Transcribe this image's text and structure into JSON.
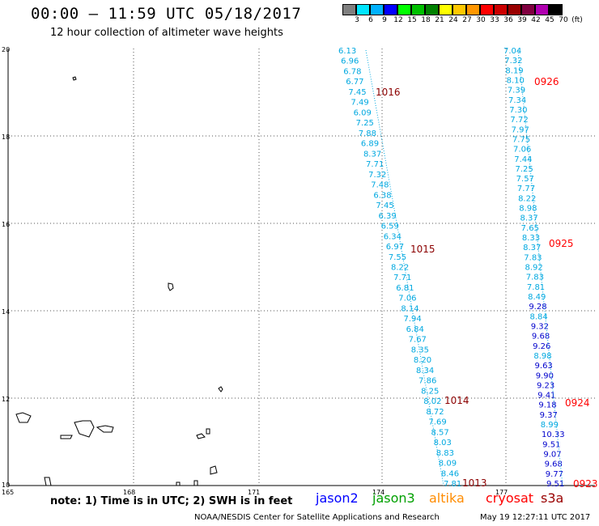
{
  "header": {
    "title": "00:00 – 11:59 UTC 05/18/2017",
    "subtitle": "12 hour collection of altimeter wave heights"
  },
  "colorbar": {
    "labels": [
      "3",
      "6",
      "9",
      "12",
      "15",
      "18",
      "21",
      "24",
      "27",
      "30",
      "33",
      "36",
      "39",
      "42",
      "45",
      "70",
      "(ft)"
    ],
    "colors": [
      "#7f7f7f",
      "#00e5ff",
      "#00b2ff",
      "#0000ff",
      "#00ff00",
      "#00c000",
      "#008000",
      "#ffff00",
      "#ffc800",
      "#ff9600",
      "#ff0000",
      "#cc0000",
      "#990000",
      "#800040",
      "#b000b0",
      "#000000"
    ]
  },
  "note": "note: 1) Time is in UTC; 2) SWH is in feet",
  "satellites": [
    {
      "name": "jason2",
      "color": "#0000ff"
    },
    {
      "name": "jason3",
      "color": "#00a000"
    },
    {
      "name": "altika",
      "color": "#ff8c00"
    },
    {
      "name": "cryosat",
      "color": "#ff0000"
    },
    {
      "name": "s3a",
      "color": "#990000"
    }
  ],
  "footer": {
    "credit": "NOAA/NESDIS Center for Satellite Applications and Research",
    "generated": "May 19 12:27:11 UTC 2017"
  },
  "chart_data": {
    "type": "scatter",
    "xlim": [
      165,
      179
    ],
    "ylim": [
      10,
      20
    ],
    "x_ticks": [
      "165",
      "168",
      "171",
      "174",
      "177"
    ],
    "y_ticks": [
      "20",
      "18",
      "16",
      "14",
      "12",
      "10"
    ],
    "grid": true,
    "tracks": [
      {
        "satellite": "s3a",
        "values": [
          "6.13",
          "6.96",
          "6.78",
          "6.77",
          "7.45",
          "7.49",
          "6.09",
          "7.25",
          "7.88",
          "6.89",
          "8.37",
          "7.71",
          "7.32",
          "7.48",
          "6.38",
          "7.45",
          "6.39",
          "6.59",
          "6.34",
          "6.97",
          "7.55",
          "8.22",
          "7.71",
          "6.81",
          "7.06",
          "8.14",
          "7.94",
          "6.84",
          "7.67",
          "8.35",
          "8.20",
          "8.34",
          "7.86",
          "8.25",
          "8.02",
          "8.72",
          "7.69",
          "8.57",
          "8.03",
          "8.83",
          "8.09",
          "8.46",
          "7.81"
        ],
        "colors": [
          "#00b2ff"
        ],
        "times": [
          {
            "label": "1016",
            "after_index": 4
          },
          {
            "label": "1015",
            "after_index": 19
          },
          {
            "label": "1014",
            "after_index": 34
          },
          {
            "label": "1013",
            "after_index": 42
          }
        ]
      },
      {
        "satellite": "cryosat",
        "values": [
          "7.04",
          "7.32",
          "8.19",
          "8.10",
          "7.39",
          "7.34",
          "7.30",
          "7.72",
          "7.97",
          "7.75",
          "7.06",
          "7.44",
          "7.25",
          "7.57",
          "7.77",
          "8.22",
          "8.98",
          "8.37",
          "7.65",
          "8.33",
          "8.37",
          "7.83",
          "8.92",
          "7.83",
          "7.81",
          "8.49",
          "9.28",
          "8.84",
          "9.32",
          "9.68",
          "9.26",
          "8.98",
          "9.63",
          "9.90",
          "9.23",
          "9.41",
          "9.18",
          "9.37",
          "8.99",
          "10.33",
          "9.51",
          "9.07",
          "9.68",
          "9.77",
          "9.51"
        ],
        "times": [
          {
            "label": "0926",
            "after_index": 3
          },
          {
            "label": "0925",
            "after_index": 19
          },
          {
            "label": "0924",
            "after_index": 36
          },
          {
            "label": "0923",
            "after_index": 44
          }
        ]
      }
    ]
  }
}
